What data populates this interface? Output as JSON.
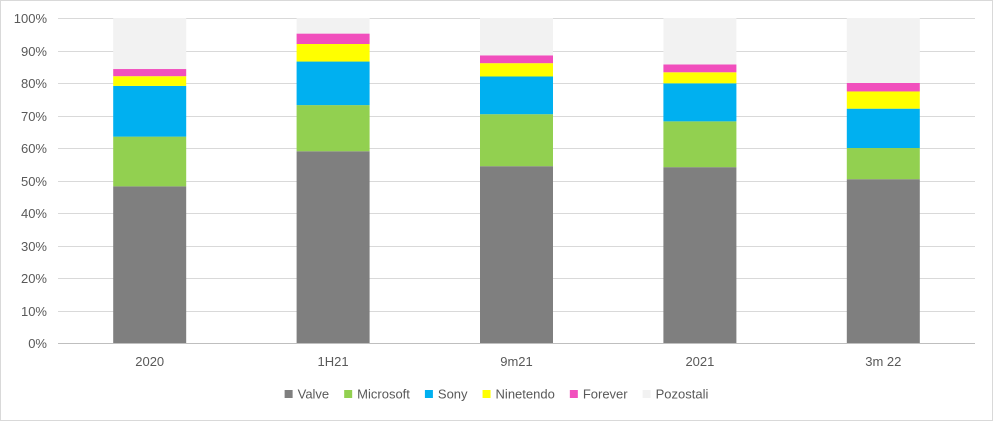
{
  "chart_data": {
    "type": "bar",
    "stacked": true,
    "categories": [
      "2020",
      "1H21",
      "9m21",
      "2021",
      "3m 22"
    ],
    "series": [
      {
        "name": "Valve",
        "color": "#7f7f7f",
        "values": [
          48.2,
          59.0,
          54.4,
          54.1,
          50.4
        ]
      },
      {
        "name": "Microsoft",
        "color": "#92d050",
        "values": [
          15.3,
          14.2,
          16.0,
          14.1,
          9.6
        ]
      },
      {
        "name": "Sony",
        "color": "#00b0f0",
        "values": [
          15.6,
          13.4,
          11.6,
          11.7,
          12.1
        ]
      },
      {
        "name": "Ninetendo",
        "color": "#ffff00",
        "values": [
          3.0,
          5.4,
          4.1,
          3.4,
          5.3
        ]
      },
      {
        "name": "Forever",
        "color": "#f14fbd",
        "values": [
          2.2,
          3.2,
          2.4,
          2.4,
          2.6
        ]
      },
      {
        "name": "Pozostali",
        "color": "#f2f2f2",
        "values": [
          15.7,
          4.8,
          11.5,
          14.3,
          20.0
        ]
      }
    ],
    "y_ticks": [
      "0%",
      "10%",
      "20%",
      "30%",
      "40%",
      "50%",
      "60%",
      "70%",
      "80%",
      "90%",
      "100%"
    ],
    "ylim": [
      0,
      100
    ],
    "grid": true,
    "legend_position": "bottom",
    "title": "",
    "xlabel": "",
    "ylabel": ""
  }
}
